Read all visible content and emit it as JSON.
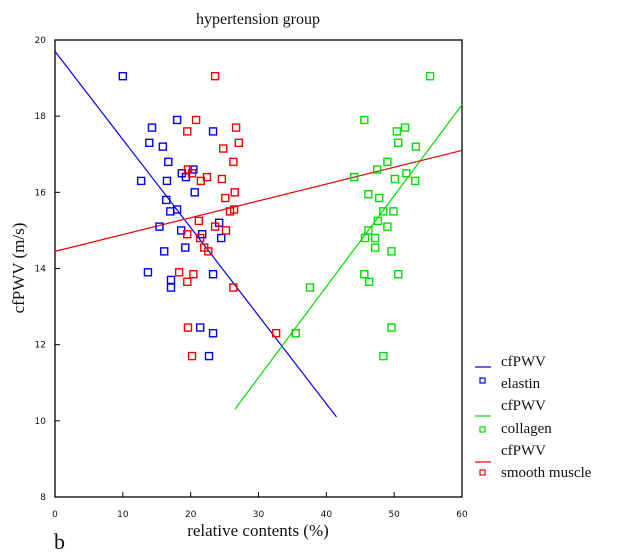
{
  "chart_data": {
    "type": "scatter",
    "title": "hypertension group",
    "panel_label": "b",
    "xlabel": "relative contents (%)",
    "ylabel": "cfPWV (m/s)",
    "xlim": [
      0,
      60
    ],
    "ylim": [
      8,
      20
    ],
    "xticks": [
      "0",
      "10",
      "20",
      "30",
      "40",
      "50",
      "60"
    ],
    "yticks": [
      "8",
      "10",
      "12",
      "14",
      "16",
      "18",
      "20"
    ],
    "grid": false,
    "legend_position": "right",
    "series": [
      {
        "name": "elastin",
        "line_label": "cfPWV",
        "color": "#0000ee",
        "points": [
          [
            10,
            19.05
          ],
          [
            14.3,
            17.7
          ],
          [
            18.0,
            17.9
          ],
          [
            23.3,
            17.6
          ],
          [
            13.9,
            17.3
          ],
          [
            15.9,
            17.2
          ],
          [
            16.7,
            16.8
          ],
          [
            18.7,
            16.5
          ],
          [
            20.4,
            16.6
          ],
          [
            19.3,
            16.4
          ],
          [
            12.7,
            16.3
          ],
          [
            16.5,
            16.3
          ],
          [
            20.6,
            16.0
          ],
          [
            16.4,
            15.8
          ],
          [
            17.0,
            15.5
          ],
          [
            18.0,
            15.55
          ],
          [
            15.4,
            15.1
          ],
          [
            18.6,
            15.0
          ],
          [
            24.2,
            15.2
          ],
          [
            21.7,
            14.9
          ],
          [
            24.5,
            14.8
          ],
          [
            19.2,
            14.55
          ],
          [
            16.1,
            14.45
          ],
          [
            13.7,
            13.9
          ],
          [
            17.1,
            13.7
          ],
          [
            17.1,
            13.5
          ],
          [
            23.3,
            13.85
          ],
          [
            21.4,
            12.45
          ],
          [
            23.3,
            12.3
          ],
          [
            22.7,
            11.7
          ]
        ],
        "fit_line": [
          [
            0,
            19.7
          ],
          [
            41.5,
            10.1
          ]
        ]
      },
      {
        "name": "collagen",
        "line_label": "cfPWV",
        "color": "#00dd00",
        "points": [
          [
            55.3,
            19.05
          ],
          [
            45.6,
            17.9
          ],
          [
            51.6,
            17.7
          ],
          [
            50.4,
            17.6
          ],
          [
            50.6,
            17.3
          ],
          [
            53.2,
            17.2
          ],
          [
            49.0,
            16.8
          ],
          [
            47.5,
            16.6
          ],
          [
            44.1,
            16.4
          ],
          [
            51.8,
            16.5
          ],
          [
            50.1,
            16.35
          ],
          [
            53.1,
            16.3
          ],
          [
            46.2,
            15.95
          ],
          [
            47.8,
            15.85
          ],
          [
            48.4,
            15.5
          ],
          [
            49.9,
            15.5
          ],
          [
            47.6,
            15.25
          ],
          [
            49.0,
            15.1
          ],
          [
            46.2,
            15.0
          ],
          [
            45.7,
            14.8
          ],
          [
            47.2,
            14.8
          ],
          [
            47.2,
            14.55
          ],
          [
            49.6,
            14.45
          ],
          [
            45.6,
            13.85
          ],
          [
            46.3,
            13.65
          ],
          [
            50.6,
            13.85
          ],
          [
            37.6,
            13.5
          ],
          [
            49.6,
            12.45
          ],
          [
            35.5,
            12.3
          ],
          [
            48.4,
            11.7
          ]
        ],
        "fit_line": [
          [
            26.5,
            10.3
          ],
          [
            60,
            18.3
          ]
        ]
      },
      {
        "name": "smooth muscle",
        "line_label": "cfPWV",
        "color": "#ee0000",
        "points": [
          [
            23.6,
            19.05
          ],
          [
            20.8,
            17.9
          ],
          [
            19.5,
            17.6
          ],
          [
            26.7,
            17.7
          ],
          [
            27.1,
            17.3
          ],
          [
            24.8,
            17.15
          ],
          [
            26.3,
            16.8
          ],
          [
            19.6,
            16.6
          ],
          [
            20.2,
            16.5
          ],
          [
            22.4,
            16.4
          ],
          [
            21.5,
            16.3
          ],
          [
            24.6,
            16.35
          ],
          [
            26.5,
            16.0
          ],
          [
            25.1,
            15.85
          ],
          [
            25.8,
            15.5
          ],
          [
            26.4,
            15.55
          ],
          [
            21.2,
            15.25
          ],
          [
            23.6,
            15.1
          ],
          [
            25.2,
            15.0
          ],
          [
            19.5,
            14.9
          ],
          [
            21.4,
            14.8
          ],
          [
            22.0,
            14.55
          ],
          [
            22.6,
            14.45
          ],
          [
            18.3,
            13.9
          ],
          [
            20.4,
            13.85
          ],
          [
            19.5,
            13.65
          ],
          [
            26.3,
            13.5
          ],
          [
            19.6,
            12.45
          ],
          [
            20.2,
            11.7
          ],
          [
            32.6,
            12.3
          ]
        ],
        "fit_line": [
          [
            0,
            14.45
          ],
          [
            60,
            17.1
          ]
        ]
      }
    ]
  }
}
